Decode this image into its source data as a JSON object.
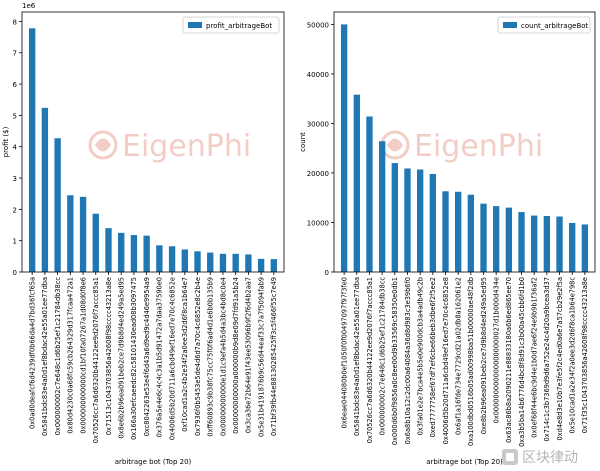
{
  "colors": {
    "bar": "#1f77b4",
    "axis": "#000000",
    "watermark": "#e8a598"
  },
  "watermark": {
    "text": "EigenPhi"
  },
  "footer_logo": {
    "text": "区块律动"
  },
  "chart_data": [
    {
      "type": "bar",
      "title": "",
      "xlabel": "arbitrage bot (Top 20)",
      "ylabel": "profit ($)",
      "y_offset_text": "1e6",
      "ylim": [
        0,
        8.3
      ],
      "yticks": [
        0,
        1,
        2,
        3,
        4,
        5,
        6,
        7,
        8
      ],
      "legend": {
        "label": "profit_arbitrageBot",
        "loc": "upper right"
      },
      "categories": [
        "0x0ad0deafcf6d4239df0b66da4d7bd36fcf65a",
        "0x5841bdc83e4a0d1ef8bdac42e55a01ee77dba",
        "0x000000002c7e648c1d6b25ef1c21784db38cc",
        "0x80d4230c0a68fc59cb264329d317fcaa472a1",
        "0x000000000000cd1bf10fa07267a1d08d0f8e6",
        "0x70526cc7a6d6320b44122ee9d2076f7accc85a1",
        "0x71513c1043703856a42608f98cccc43213a8e",
        "0x8e6b2b96ea091beb2ce7d9b8d4ed249a5ed95",
        "0x166a30efcaeedc82c58101430ead08b3097475",
        "0xc8042263e53e4f6d43a6d9ed9c4d46e9954a9",
        "0x376a5e4e6c4c4c3a1b5d91472a7daa37590e0",
        "0x4006d5b20d711a6cbd49ef16ed7e70c4c6852e",
        "0xf10cad1a2c4b2e34f2a0ee3d2d6f8ca1b64e7",
        "0x7936f0b5453e5de4d6d7a70c4c6852e8c2b4e",
        "0xff60893c9b38fc75cc75f0f6ad4d1e6b0b135b9",
        "0x00000000000e1d1c9efa4b5d4a3bc4bd8c0e4",
        "0x00000000000a000000b9d8e09d7fd91a5b24",
        "0x3ca36e72b64e91f43ee53096b9f2f6d4b2aa7",
        "0x5e31b4191876b9c56d44eaf33c7a7f5094fab9",
        "0x71bf39fb44e88130285425ff3c5f466f55c7e49"
      ],
      "values": [
        7.78,
        5.24,
        4.27,
        2.45,
        2.4,
        1.86,
        1.4,
        1.25,
        1.18,
        1.16,
        0.85,
        0.82,
        0.72,
        0.66,
        0.62,
        0.58,
        0.58,
        0.56,
        0.42,
        0.41
      ]
    },
    {
      "type": "bar",
      "title": "",
      "xlabel": "arbitrage bot (Top 20)",
      "ylabel": "count",
      "y_offset_text": "",
      "ylim": [
        0,
        52500
      ],
      "yticks": [
        0,
        10000,
        20000,
        30000,
        40000,
        50000
      ],
      "legend": {
        "label": "count_arbitrageBot",
        "loc": "upper right"
      },
      "categories": [
        "0x6eae044080b0ef1050f0f00497097f97f3fe0",
        "0x5841bdc83e4a0d1ef8bdac42e55a01ee77dba",
        "0x70526cc7a6d6320b44122ee9d2076f7accc85a1",
        "0x000000002c7e648c1d6b25ef1c21784db38cc",
        "0x000d6b0f9856a0c8ee00d9b33569c58350e0db1",
        "0x6a8b10a12c2dc00a64084a36d8d983c3e39b6f0",
        "0x3fa01e2e7bca4e5b5e0e900dcb3a4adb49c2b",
        "0xed7777758ef67df7ef6cbe66beb3dbe6f2f5ee2",
        "0x4006d5b20d711a6cbd49ef16ed7e70c4c6852e8",
        "0x6af1a16fde734e7729cd21a02db8a162061e2",
        "0xa100dbd0516b05ad00998ba51b00000ae48f2db",
        "0xe8b2b96ea091beb2ce7d9b8d4ed249a5ed95",
        "0x0000000000000000000027d1b000d434e",
        "0x63ac86b8a2090211e88833180a6b6ed865ee70",
        "0xa3b5ba14b6776d4bc8f8d91c3b00a45cbb6fd1b0",
        "0x0ef68f44e6bc9d4e1b0d7ae6f24e9b9b1f36af2",
        "0x714c1c3b7369d9d6a752e24c4d20a9bcea3d37",
        "0xd4e8d3e10b7e3fe5f2c4ed0a6e7a57cb29e2f5a",
        "0x5e10cad1a2e34f2a0ee3d2d6f8ca1b64e798c",
        "0x71f35c1043703856a42608f98cccc43213a8e"
      ],
      "values": [
        50000,
        35800,
        31400,
        26400,
        22000,
        20900,
        20700,
        19800,
        16300,
        16200,
        15600,
        13800,
        13300,
        13000,
        12100,
        11400,
        11300,
        11200,
        9900,
        9600
      ]
    }
  ]
}
